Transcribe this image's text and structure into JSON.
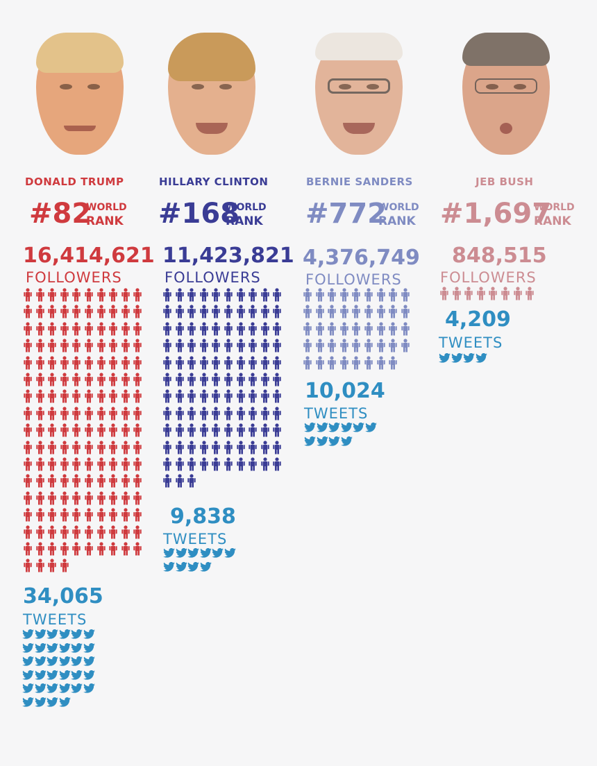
{
  "chart_data": {
    "type": "pictograph",
    "metrics": [
      "followers",
      "tweets"
    ],
    "candidates": [
      {
        "name": "DONALD TRUMP",
        "rank": "#82",
        "rank_label_1": "WORLD",
        "rank_label_2": "RANK",
        "followers": 16414621,
        "followers_text": "16,414,621",
        "followers_label": "FOLLOWERS",
        "tweets": 34065,
        "tweets_text": "34,065",
        "tweets_label": "TWEETS",
        "color": "#cf3a3e",
        "face": "donald-trump-face",
        "person_icons": 164,
        "bird_icons": 34
      },
      {
        "name": "HILLARY CLINTON",
        "rank": "#168",
        "rank_label_1": "WORLD",
        "rank_label_2": "RANK",
        "followers": 11423821,
        "followers_text": "11,423,821",
        "followers_label": "FOLLOWERS",
        "tweets": 9838,
        "tweets_text": "9,838",
        "tweets_label": "TWEETS",
        "color": "#3a3c95",
        "face": "hillary-clinton-face",
        "person_icons": 113,
        "bird_icons": 10
      },
      {
        "name": "BERNIE SANDERS",
        "rank": "#772",
        "rank_label_1": "WORLD",
        "rank_label_2": "RANK",
        "followers": 4376749,
        "followers_text": "4,376,749",
        "followers_label": "FOLLOWERS",
        "tweets": 10024,
        "tweets_text": "10,024",
        "tweets_label": "TWEETS",
        "color": "#7f8bc2",
        "face": "bernie-sanders-face",
        "person_icons": 44,
        "bird_icons": 10
      },
      {
        "name": "JEB BUSH",
        "rank": "#1,697",
        "rank_label_1": "WORLD",
        "rank_label_2": "RANK",
        "followers": 848515,
        "followers_text": "848,515",
        "followers_label": "FOLLOWERS",
        "tweets": 4209,
        "tweets_text": "4,209",
        "tweets_label": "TWEETS",
        "color": "#cc8c92",
        "face": "jeb-bush-face",
        "person_icons": 8,
        "bird_icons": 4
      }
    ],
    "tweet_color": "#2f8ec2",
    "icon_unit_followers": "100,000 followers per person icon",
    "icon_unit_tweets": "1,000 tweets per bird icon"
  }
}
